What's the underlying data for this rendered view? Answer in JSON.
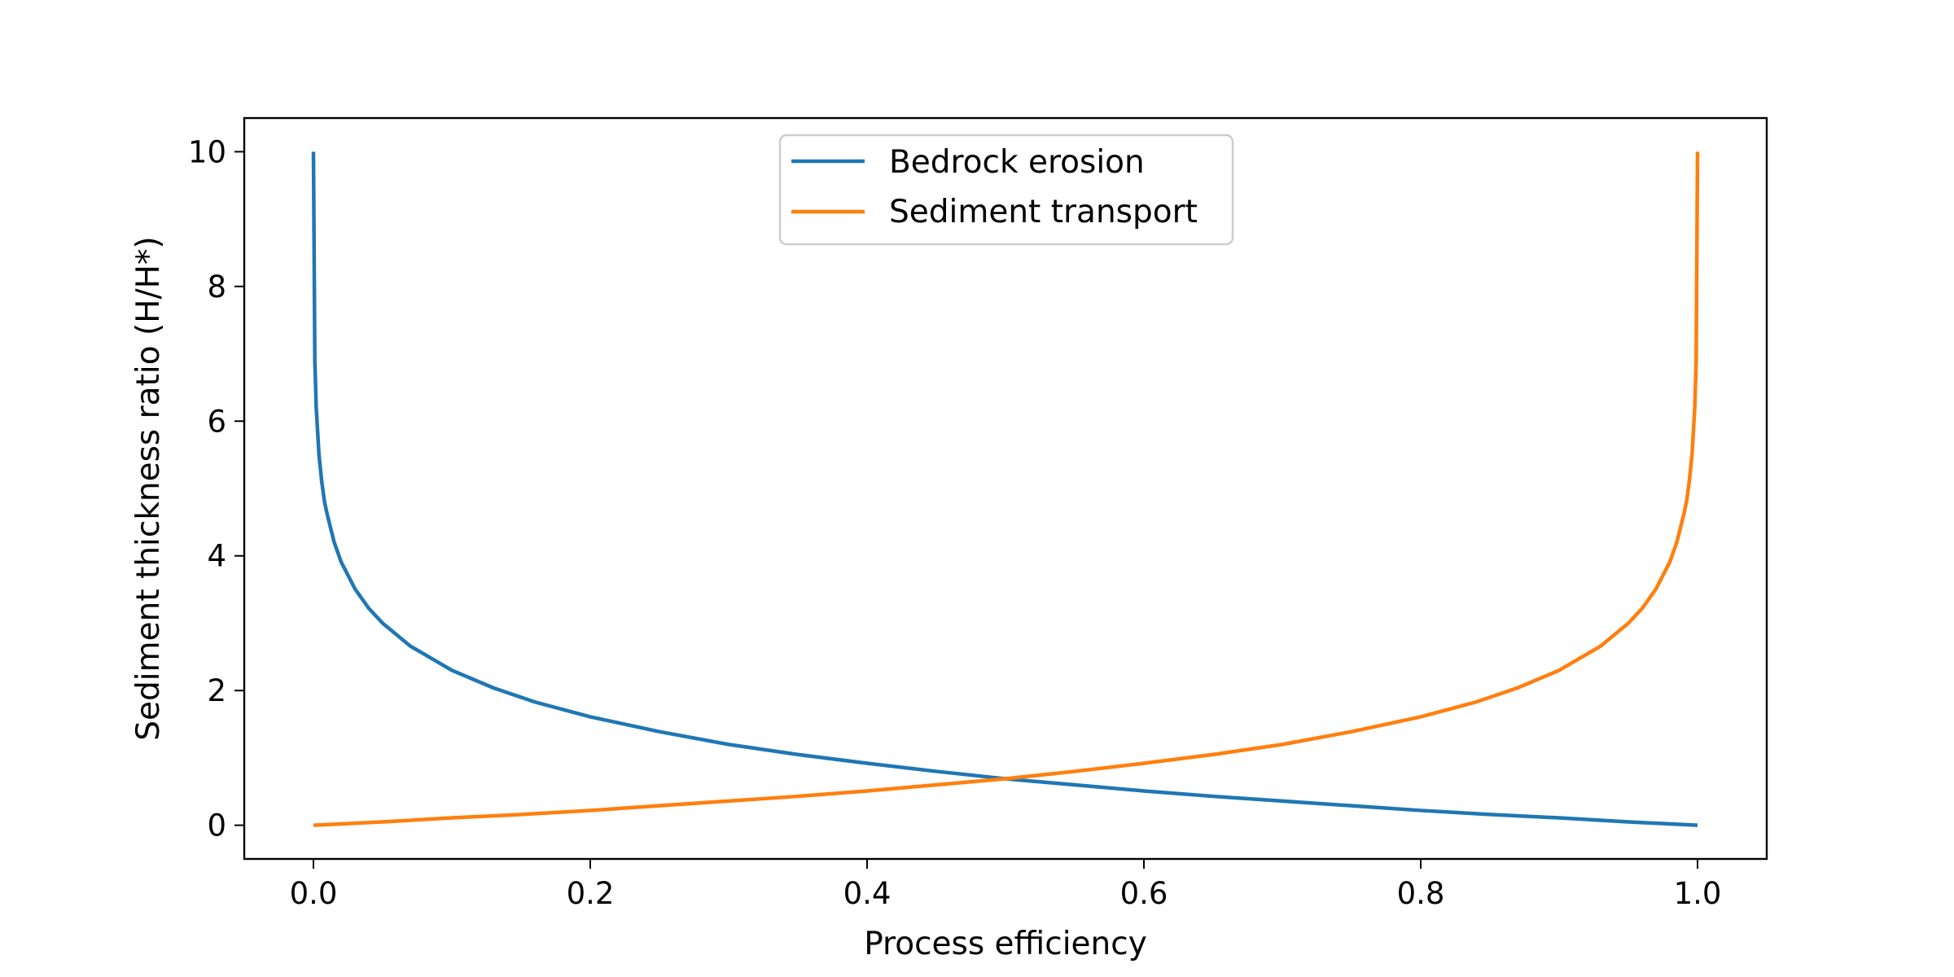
{
  "chart_data": {
    "type": "line",
    "title": "",
    "xlabel": "Process efficiency",
    "ylabel": "Sediment thickness ratio (H/H*)",
    "xlim": [
      -0.05,
      1.05
    ],
    "ylim": [
      -0.5,
      10.5
    ],
    "x_ticks": [
      0.0,
      0.2,
      0.4,
      0.6,
      0.8,
      1.0
    ],
    "x_tick_labels": [
      "0.0",
      "0.2",
      "0.4",
      "0.6",
      "0.8",
      "1.0"
    ],
    "y_ticks": [
      0,
      2,
      4,
      6,
      8,
      10
    ],
    "y_tick_labels": [
      "0",
      "2",
      "4",
      "6",
      "8",
      "10"
    ],
    "grid": false,
    "legend_position": "upper-center",
    "series": [
      {
        "name": "Bedrock erosion",
        "color": "#1f77b4",
        "points": [
          [
            0.0,
            10.0
          ],
          [
            0.001,
            6.9
          ],
          [
            0.002,
            6.2
          ],
          [
            0.004,
            5.5
          ],
          [
            0.006,
            5.1
          ],
          [
            0.008,
            4.8
          ],
          [
            0.01,
            4.61
          ],
          [
            0.015,
            4.2
          ],
          [
            0.02,
            3.91
          ],
          [
            0.03,
            3.51
          ],
          [
            0.04,
            3.22
          ],
          [
            0.05,
            3.0
          ],
          [
            0.07,
            2.66
          ],
          [
            0.1,
            2.3
          ],
          [
            0.13,
            2.04
          ],
          [
            0.16,
            1.83
          ],
          [
            0.2,
            1.61
          ],
          [
            0.25,
            1.39
          ],
          [
            0.3,
            1.2
          ],
          [
            0.35,
            1.05
          ],
          [
            0.4,
            0.92
          ],
          [
            0.45,
            0.8
          ],
          [
            0.5,
            0.69
          ],
          [
            0.55,
            0.6
          ],
          [
            0.6,
            0.51
          ],
          [
            0.65,
            0.43
          ],
          [
            0.7,
            0.36
          ],
          [
            0.75,
            0.29
          ],
          [
            0.8,
            0.22
          ],
          [
            0.85,
            0.16
          ],
          [
            0.9,
            0.11
          ],
          [
            0.95,
            0.05
          ],
          [
            1.0,
            0.0
          ]
        ]
      },
      {
        "name": "Sediment transport",
        "color": "#ff7f0e",
        "points": [
          [
            0.0,
            0.0
          ],
          [
            0.05,
            0.05
          ],
          [
            0.1,
            0.11
          ],
          [
            0.15,
            0.16
          ],
          [
            0.2,
            0.22
          ],
          [
            0.25,
            0.29
          ],
          [
            0.3,
            0.36
          ],
          [
            0.35,
            0.43
          ],
          [
            0.4,
            0.51
          ],
          [
            0.45,
            0.6
          ],
          [
            0.5,
            0.69
          ],
          [
            0.55,
            0.8
          ],
          [
            0.6,
            0.92
          ],
          [
            0.65,
            1.05
          ],
          [
            0.7,
            1.2
          ],
          [
            0.75,
            1.39
          ],
          [
            0.8,
            1.61
          ],
          [
            0.84,
            1.83
          ],
          [
            0.87,
            2.04
          ],
          [
            0.9,
            2.3
          ],
          [
            0.93,
            2.66
          ],
          [
            0.95,
            3.0
          ],
          [
            0.96,
            3.22
          ],
          [
            0.97,
            3.51
          ],
          [
            0.98,
            3.91
          ],
          [
            0.985,
            4.2
          ],
          [
            0.99,
            4.61
          ],
          [
            0.992,
            4.8
          ],
          [
            0.994,
            5.1
          ],
          [
            0.996,
            5.5
          ],
          [
            0.998,
            6.2
          ],
          [
            0.999,
            6.9
          ],
          [
            1.0,
            10.0
          ]
        ]
      }
    ]
  }
}
